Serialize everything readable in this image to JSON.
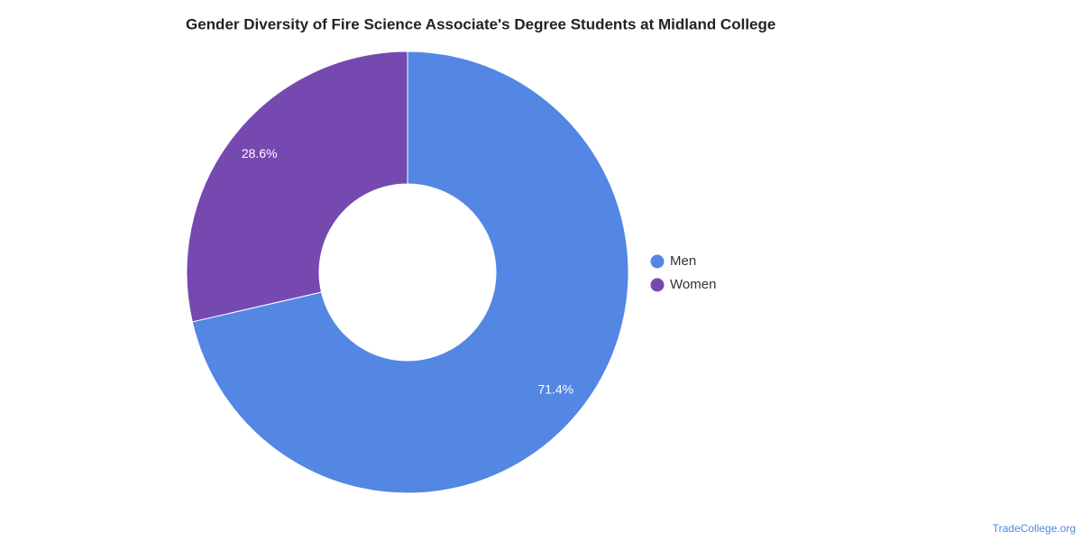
{
  "chart_data": {
    "type": "donut",
    "title": "Gender Diversity of Fire Science Associate's Degree Students at Midland College",
    "categories": [
      "Men",
      "Women"
    ],
    "values": [
      71.4,
      28.6
    ],
    "value_labels": [
      "71.4%",
      "28.6%"
    ],
    "colors": [
      "#5486e3",
      "#7649b0"
    ],
    "legend": "right",
    "source": "TradeCollege.org"
  }
}
